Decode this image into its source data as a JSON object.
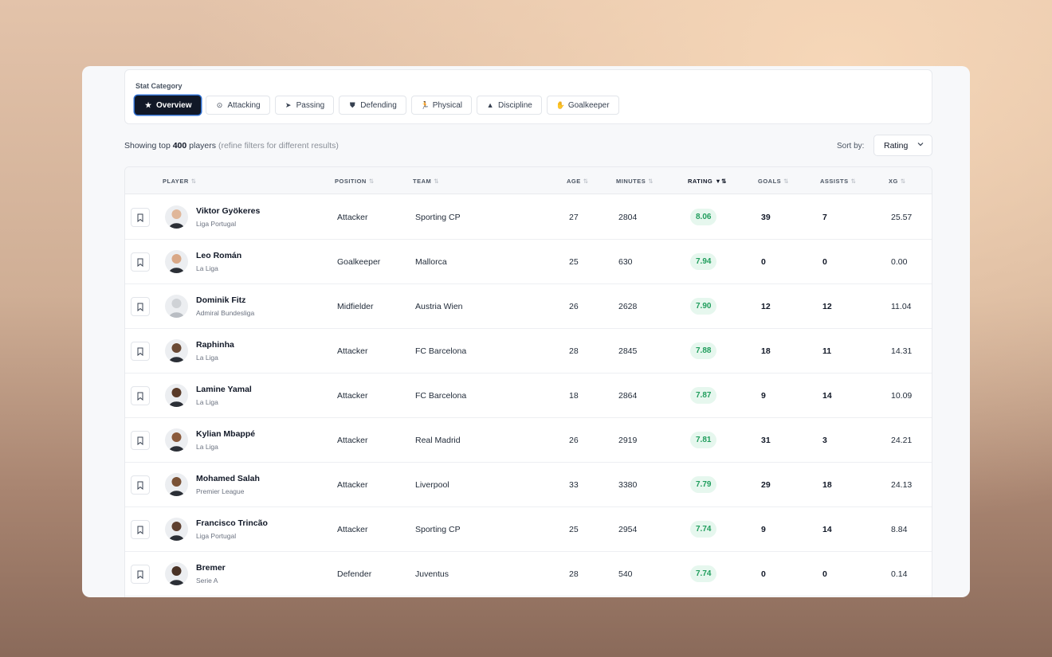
{
  "filters": {
    "title": "Stat Category",
    "chips": [
      {
        "label": "Overview",
        "icon": "★",
        "icon_name": "star-icon",
        "active": true
      },
      {
        "label": "Attacking",
        "icon": "⊙",
        "icon_name": "target-icon"
      },
      {
        "label": "Passing",
        "icon": "➤",
        "icon_name": "send-icon"
      },
      {
        "label": "Defending",
        "icon": "⛊",
        "icon_name": "shield-icon"
      },
      {
        "label": "Physical",
        "icon": "🏃",
        "icon_name": "running-icon"
      },
      {
        "label": "Discipline",
        "icon": "▲",
        "icon_name": "warning-icon"
      },
      {
        "label": "Goalkeeper",
        "icon": "✋",
        "icon_name": "glove-icon"
      }
    ]
  },
  "summary": {
    "prefix": "Showing top",
    "count": "400",
    "suffix": "players",
    "hint": "(refine filters for different results)"
  },
  "sort": {
    "label": "Sort by:",
    "value": "Rating"
  },
  "columns": {
    "player": "PLAYER",
    "position": "POSITION",
    "team": "TEAM",
    "age": "AGE",
    "minutes": "MINUTES",
    "rating": "RATING",
    "goals": "GOALS",
    "assists": "ASSISTS",
    "xg": "XG"
  },
  "colors": {
    "accent": "#111827",
    "rating_bg": "#e6f7ee",
    "rating_text": "#1f9d5c"
  },
  "players": [
    {
      "name": "Viktor Gyökeres",
      "league": "Liga Portugal",
      "position": "Attacker",
      "team": "Sporting CP",
      "age": "27",
      "minutes": "2804",
      "rating": "8.06",
      "goals": "39",
      "assists": "7",
      "xg": "25.57"
    },
    {
      "name": "Leo Román",
      "league": "La Liga",
      "position": "Goalkeeper",
      "team": "Mallorca",
      "age": "25",
      "minutes": "630",
      "rating": "7.94",
      "goals": "0",
      "assists": "0",
      "xg": "0.00"
    },
    {
      "name": "Dominik Fitz",
      "league": "Admiral Bundesliga",
      "position": "Midfielder",
      "team": "Austria Wien",
      "age": "26",
      "minutes": "2628",
      "rating": "7.90",
      "goals": "12",
      "assists": "12",
      "xg": "11.04"
    },
    {
      "name": "Raphinha",
      "league": "La Liga",
      "position": "Attacker",
      "team": "FC Barcelona",
      "age": "28",
      "minutes": "2845",
      "rating": "7.88",
      "goals": "18",
      "assists": "11",
      "xg": "14.31"
    },
    {
      "name": "Lamine Yamal",
      "league": "La Liga",
      "position": "Attacker",
      "team": "FC Barcelona",
      "age": "18",
      "minutes": "2864",
      "rating": "7.87",
      "goals": "9",
      "assists": "14",
      "xg": "10.09"
    },
    {
      "name": "Kylian Mbappé",
      "league": "La Liga",
      "position": "Attacker",
      "team": "Real Madrid",
      "age": "26",
      "minutes": "2919",
      "rating": "7.81",
      "goals": "31",
      "assists": "3",
      "xg": "24.21"
    },
    {
      "name": "Mohamed Salah",
      "league": "Premier League",
      "position": "Attacker",
      "team": "Liverpool",
      "age": "33",
      "minutes": "3380",
      "rating": "7.79",
      "goals": "29",
      "assists": "18",
      "xg": "24.13"
    },
    {
      "name": "Francisco Trincão",
      "league": "Liga Portugal",
      "position": "Attacker",
      "team": "Sporting CP",
      "age": "25",
      "minutes": "2954",
      "rating": "7.74",
      "goals": "9",
      "assists": "14",
      "xg": "8.84"
    },
    {
      "name": "Bremer",
      "league": "Serie A",
      "position": "Defender",
      "team": "Juventus",
      "age": "28",
      "minutes": "540",
      "rating": "7.74",
      "goals": "0",
      "assists": "0",
      "xg": "0.14"
    }
  ]
}
